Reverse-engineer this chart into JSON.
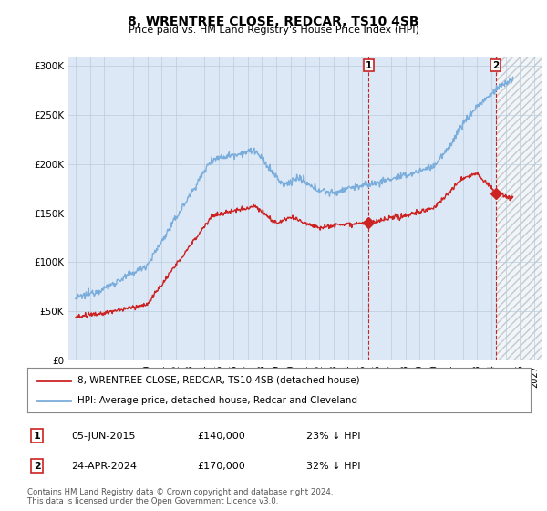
{
  "title": "8, WRENTREE CLOSE, REDCAR, TS10 4SB",
  "subtitle": "Price paid vs. HM Land Registry's House Price Index (HPI)",
  "hpi_label": "HPI: Average price, detached house, Redcar and Cleveland",
  "property_label": "8, WRENTREE CLOSE, REDCAR, TS10 4SB (detached house)",
  "footer1": "Contains HM Land Registry data © Crown copyright and database right 2024.",
  "footer2": "This data is licensed under the Open Government Licence v3.0.",
  "annotation1": {
    "label": "1",
    "date": "05-JUN-2015",
    "price": "£140,000",
    "hpi": "23% ↓ HPI"
  },
  "annotation2": {
    "label": "2",
    "date": "24-APR-2024",
    "price": "£170,000",
    "hpi": "32% ↓ HPI"
  },
  "ylim": [
    0,
    310000
  ],
  "yticks": [
    0,
    50000,
    100000,
    150000,
    200000,
    250000,
    300000
  ],
  "hpi_color": "#7aaddc",
  "property_color": "#cc2222",
  "marker_color": "#cc2222",
  "anno_x1_year": 2015.43,
  "anno_x2_year": 2024.31,
  "anno1_y": 140000,
  "anno2_y": 170000,
  "shade_color": "#dce8f5",
  "hatch_color": "#c8d8e8",
  "xlim_left": 1994.5,
  "xlim_right": 2027.5
}
